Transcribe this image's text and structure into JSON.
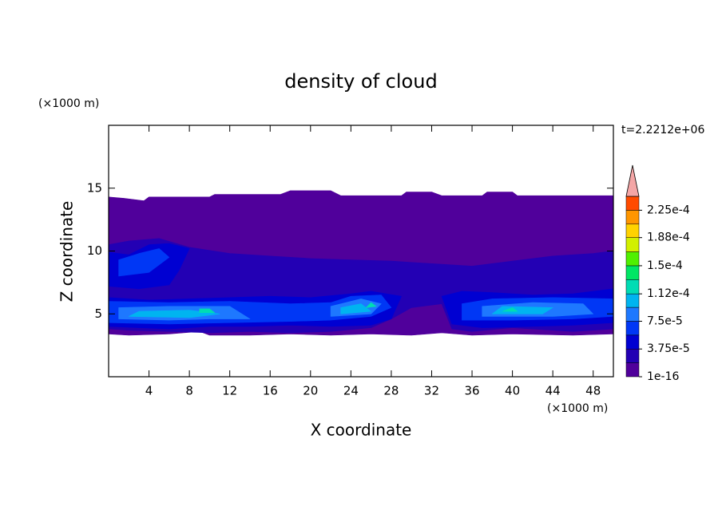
{
  "chart_data": {
    "type": "contour",
    "title": "density of cloud",
    "x_label": "X coordinate",
    "y_label": "Z coordinate",
    "x_unit": "(×1000 m)",
    "y_unit": "(×1000 m)",
    "time_label": "t=2.2212e+06",
    "xlim": [
      0,
      50
    ],
    "ylim": [
      0,
      20
    ],
    "xticks": [
      4,
      8,
      12,
      16,
      20,
      24,
      28,
      32,
      36,
      40,
      44,
      48
    ],
    "yticks": [
      5,
      10,
      15
    ],
    "colorbar": {
      "levels": [
        1e-16,
        1.875e-05,
        3.75e-05,
        5.625e-05,
        7.5e-05,
        9.375e-05,
        0.000112,
        0.00013125,
        0.00015,
        0.00016875,
        0.000188,
        0.00020625,
        0.000225,
        0.00024375
      ],
      "colors": [
        "#50009b",
        "#2300b4",
        "#0000d2",
        "#0037f5",
        "#1e78ff",
        "#00b4f0",
        "#00dcb4",
        "#00e664",
        "#50f000",
        "#d2f000",
        "#ffd200",
        "#ff9600",
        "#ff4b00"
      ],
      "extend_color": "#f4a6a6",
      "ticks": [
        1e-16,
        {
          "value": 3.75e-05,
          "label": "3.75e-5"
        },
        {
          "value": 7.5e-05,
          "label": "7.5e-5"
        },
        {
          "value": 0.000112,
          "label": "1.12e-4"
        },
        {
          "value": 0.00015,
          "label": "1.5e-4"
        },
        {
          "value": 0.000188,
          "label": "1.88e-4"
        },
        {
          "value": 0.000225,
          "label": "2.25e-4"
        }
      ]
    },
    "contours": [
      {
        "level": 1e-16,
        "x": [
          0,
          1.5,
          3.5,
          4,
          10,
          10.5,
          17,
          18,
          22,
          23,
          29,
          29.5,
          32,
          33,
          37,
          37.5,
          40,
          40.5,
          50,
          50,
          46,
          40,
          36,
          33,
          30,
          26,
          22,
          18,
          14,
          10,
          9,
          6,
          2,
          0
        ],
        "z": [
          14.3,
          14.2,
          14.0,
          14.3,
          14.3,
          14.5,
          14.5,
          14.8,
          14.8,
          14.4,
          14.4,
          14.7,
          14.7,
          14.4,
          14.4,
          14.7,
          14.7,
          14.4,
          14.4,
          3.4,
          3.3,
          3.4,
          3.3,
          3.5,
          3.3,
          3.4,
          3.3,
          3.4,
          3.3,
          3.3,
          3.6,
          3.4,
          3.3,
          3.4
        ]
      },
      {
        "level": 1.875e-05,
        "x": [
          0,
          2,
          5,
          8,
          12,
          16,
          20,
          24,
          28,
          32,
          36,
          40,
          44,
          48,
          50,
          50,
          46,
          44,
          40,
          36,
          34,
          33,
          30,
          28,
          26,
          22,
          18,
          14,
          10,
          6,
          2,
          0
        ],
        "z": [
          10.5,
          10.8,
          11.0,
          10.3,
          9.8,
          9.6,
          9.4,
          9.3,
          9.2,
          9.0,
          8.8,
          9.2,
          9.6,
          9.8,
          10.0,
          3.8,
          3.6,
          3.7,
          3.9,
          3.6,
          3.8,
          5.8,
          5.5,
          4.6,
          3.9,
          3.6,
          3.5,
          3.6,
          3.5,
          3.6,
          3.7,
          3.8
        ]
      },
      {
        "level": 3.75e-05,
        "x": [
          0,
          3,
          6,
          10,
          14,
          18,
          22,
          26,
          28,
          29,
          26,
          24,
          20,
          16,
          12,
          8,
          4,
          0
        ],
        "z": [
          4.0,
          3.9,
          3.8,
          4.0,
          4.0,
          4.1,
          4.0,
          4.1,
          4.6,
          6.4,
          6.8,
          6.6,
          6.3,
          6.4,
          6.3,
          6.2,
          6.1,
          6.3
        ]
      },
      {
        "level": 3.75e-05,
        "x": [
          34,
          37,
          42,
          46,
          50,
          50,
          46,
          42,
          38,
          35,
          33
        ],
        "z": [
          4.2,
          3.9,
          4.0,
          4.1,
          4.3,
          7.0,
          6.6,
          6.5,
          6.7,
          6.8,
          6.4
        ]
      },
      {
        "level": 3.75e-05,
        "x": [
          0,
          3,
          6,
          7,
          8,
          6,
          4,
          2,
          0
        ],
        "z": [
          7.2,
          7.0,
          7.3,
          8.5,
          10.2,
          10.6,
          10.5,
          9.7,
          9.9
        ]
      },
      {
        "level": 5.625e-05,
        "x": [
          0,
          6,
          12,
          18,
          22,
          26,
          28,
          27,
          24,
          22,
          18,
          12,
          6,
          0
        ],
        "z": [
          4.3,
          4.2,
          4.3,
          4.4,
          4.5,
          4.8,
          5.5,
          6.5,
          6.4,
          5.9,
          5.8,
          6.0,
          5.9,
          6.0
        ]
      },
      {
        "level": 5.625e-05,
        "x": [
          35,
          40,
          46,
          50,
          50,
          44,
          38,
          35
        ],
        "z": [
          4.5,
          4.5,
          4.6,
          4.8,
          6.2,
          6.3,
          6.2,
          5.8
        ]
      },
      {
        "level": 5.625e-05,
        "x": [
          1,
          4,
          6,
          5,
          3,
          1
        ],
        "z": [
          8.0,
          8.3,
          9.5,
          10.2,
          9.8,
          9.3
        ]
      },
      {
        "level": 7.5e-05,
        "x": [
          1,
          6,
          10,
          14,
          12,
          6,
          1
        ],
        "z": [
          4.6,
          4.5,
          4.6,
          4.6,
          5.6,
          5.6,
          5.5
        ]
      },
      {
        "level": 7.5e-05,
        "x": [
          22,
          26,
          27,
          25,
          22
        ],
        "z": [
          4.8,
          5.0,
          5.8,
          6.2,
          5.6
        ]
      },
      {
        "level": 7.5e-05,
        "x": [
          37,
          44,
          48,
          47,
          42,
          37
        ],
        "z": [
          4.8,
          4.8,
          5.0,
          5.8,
          5.9,
          5.6
        ]
      },
      {
        "level": 9.375e-05,
        "x": [
          2,
          8,
          11,
          8,
          3
        ],
        "z": [
          4.8,
          4.7,
          5.0,
          5.3,
          5.2
        ]
      },
      {
        "level": 9.375e-05,
        "x": [
          23,
          26,
          25,
          23
        ],
        "z": [
          5.0,
          5.2,
          5.8,
          5.5
        ]
      },
      {
        "level": 9.375e-05,
        "x": [
          38,
          43,
          44,
          39
        ],
        "z": [
          5.0,
          5.0,
          5.5,
          5.6
        ]
      },
      {
        "level": 0.000112,
        "x": [
          9,
          10.5,
          10,
          9
        ],
        "z": [
          5.1,
          5.1,
          5.4,
          5.4
        ]
      },
      {
        "level": 0.000112,
        "x": [
          25.5,
          26.5,
          26
        ],
        "z": [
          5.5,
          5.6,
          5.9
        ]
      },
      {
        "level": 0.000112,
        "x": [
          39,
          40.5,
          40
        ],
        "z": [
          5.2,
          5.2,
          5.5
        ]
      }
    ]
  }
}
